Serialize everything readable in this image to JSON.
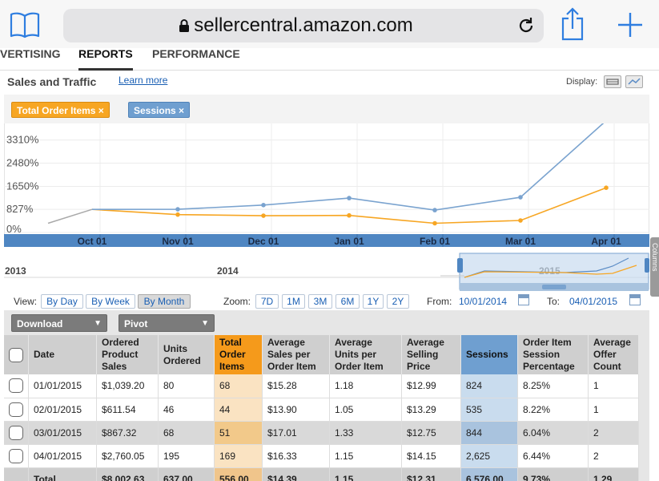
{
  "browser": {
    "url": "sellercentral.amazon.com"
  },
  "tabs": [
    {
      "label": "VERTISING"
    },
    {
      "label": "REPORTS"
    },
    {
      "label": "PERFORMANCE"
    }
  ],
  "section": {
    "title": "Sales and Traffic",
    "learn_more": "Learn more",
    "display_label": "Display:"
  },
  "legend": {
    "total_order_items": "Total Order Items ×",
    "sessions": "Sessions ×"
  },
  "colors": {
    "orange_series": "#f7a623",
    "blue_series": "#7aa3cf",
    "axis_band": "#4f86c2"
  },
  "chart_data": {
    "type": "line",
    "y_tick_labels": [
      "3310%",
      "2480%",
      "1650%",
      "827%",
      "0%"
    ],
    "y_tick_values": [
      3310,
      2480,
      1650,
      827,
      0
    ],
    "ylim": [
      0,
      3900
    ],
    "x_tick_labels": [
      "Oct 01",
      "Nov 01",
      "Dec 01",
      "Jan 01",
      "Feb 01",
      "Mar 01",
      "Apr 01"
    ],
    "series": [
      {
        "name": "Total Order Items",
        "color": "#f7a623",
        "values": [
          827,
          640,
          600,
          610,
          330,
          430,
          1600
        ]
      },
      {
        "name": "Sessions",
        "color": "#7aa3cf",
        "values": [
          827,
          830,
          980,
          1230,
          800,
          1260,
          4000
        ]
      }
    ],
    "grid": true,
    "navigator": {
      "labels": [
        "2013",
        "2014",
        "2015"
      ]
    }
  },
  "controls": {
    "view_label": "View:",
    "view_buttons": [
      "By Day",
      "By Week",
      "By Month"
    ],
    "zoom_label": "Zoom:",
    "zoom_buttons": [
      "7D",
      "1M",
      "3M",
      "6M",
      "1Y",
      "2Y"
    ],
    "from_label": "From:",
    "from_value": "10/01/2014",
    "to_label": "To:",
    "to_value": "04/01/2015"
  },
  "table": {
    "download_label": "Download",
    "pivot_label": "Pivot",
    "headers": {
      "date": "Date",
      "ordered_sales": "Ordered Product Sales",
      "units_ordered": "Units Ordered",
      "total_order_items": "Total Order Items",
      "avg_sales_per_item": "Average Sales per Order Item",
      "avg_units_per_item": "Average Units per Order Item",
      "avg_selling_price": "Average Selling Price",
      "sessions": "Sessions",
      "order_item_session_pct": "Order Item Session Percentage",
      "avg_offer_count": "Average Offer Count"
    },
    "rows": [
      {
        "date": "01/01/2015",
        "sales": "$1,039.20",
        "units": "80",
        "items": "68",
        "avg_sales": "$15.28",
        "avg_units": "1.18",
        "price": "$12.99",
        "sessions": "824",
        "pct": "8.25%",
        "offers": "1"
      },
      {
        "date": "02/01/2015",
        "sales": "$611.54",
        "units": "46",
        "items": "44",
        "avg_sales": "$13.90",
        "avg_units": "1.05",
        "price": "$13.29",
        "sessions": "535",
        "pct": "8.22%",
        "offers": "1"
      },
      {
        "date": "03/01/2015",
        "sales": "$867.32",
        "units": "68",
        "items": "51",
        "avg_sales": "$17.01",
        "avg_units": "1.33",
        "price": "$12.75",
        "sessions": "844",
        "pct": "6.04%",
        "offers": "2"
      },
      {
        "date": "04/01/2015",
        "sales": "$2,760.05",
        "units": "195",
        "items": "169",
        "avg_sales": "$16.33",
        "avg_units": "1.15",
        "price": "$14.15",
        "sessions": "2,625",
        "pct": "6.44%",
        "offers": "2"
      }
    ],
    "total": {
      "label": "Total",
      "sales": "$8,002.63",
      "units": "637.00",
      "items": "556.00",
      "avg_sales": "$14.39",
      "avg_units": "1.15",
      "price": "$12.31",
      "sessions": "6,576.00",
      "pct": "9.73%",
      "offers": "1.29"
    }
  },
  "side_tab": {
    "label": "Columns"
  }
}
